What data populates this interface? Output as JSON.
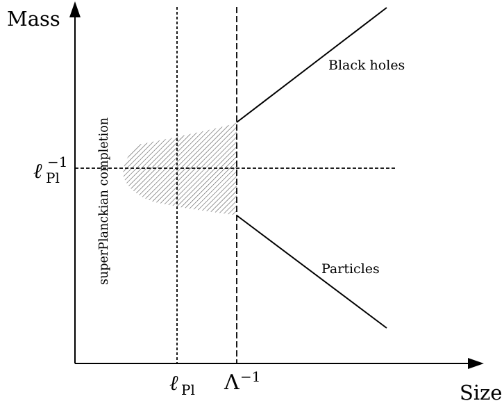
{
  "axes": {
    "y_label": "Mass",
    "x_label": "Size"
  },
  "ticks": {
    "y_tick_base": "ℓ",
    "y_tick_sup": "−1",
    "y_tick_sub": "Pl",
    "x_tick1_base": "ℓ",
    "x_tick1_sub": "Pl",
    "x_tick2_base": "Λ",
    "x_tick2_sup": "−1"
  },
  "labels": {
    "black_holes": "Black holes",
    "particles": "Particles",
    "region": "superPlanckian completion"
  }
}
